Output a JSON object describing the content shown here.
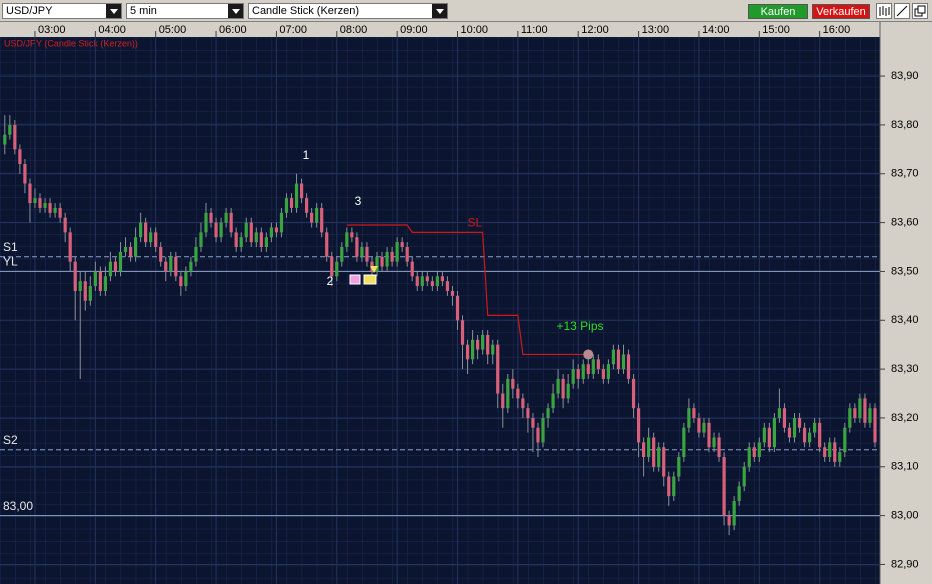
{
  "toolbar": {
    "symbol": "USD/JPY",
    "interval": "5 min",
    "chart_type": "Candle Stick (Kerzen)",
    "buy": "Kaufen",
    "sell": "Verkaufen"
  },
  "chart_data": {
    "type": "candlestick",
    "title": "USD/JPY (Candle Stick (Kerzen))",
    "categories": [
      null,
      null,
      null,
      null,
      null,
      null,
      "03:00",
      null,
      null,
      null,
      null,
      null,
      null,
      null,
      null,
      null,
      null,
      null,
      "04:00",
      null,
      null,
      null,
      null,
      null,
      null,
      null,
      null,
      null,
      null,
      null,
      "05:00",
      null,
      null,
      null,
      null,
      null,
      null,
      null,
      null,
      null,
      null,
      null,
      "06:00",
      null,
      null,
      null,
      null,
      null,
      null,
      null,
      null,
      null,
      null,
      null,
      "07:00",
      null,
      null,
      null,
      null,
      null,
      null,
      null,
      null,
      null,
      null,
      null,
      "08:00",
      null,
      null,
      null,
      null,
      null,
      null,
      null,
      null,
      null,
      null,
      null,
      "09:00",
      null,
      null,
      null,
      null,
      null,
      null,
      null,
      null,
      null,
      null,
      null,
      "10:00",
      null,
      null,
      null,
      null,
      null,
      null,
      null,
      null,
      null,
      null,
      null,
      "11:00",
      null,
      null,
      null,
      null,
      null,
      null,
      null,
      null,
      null,
      null,
      null,
      "12:00",
      null,
      null,
      null,
      null,
      null,
      null,
      null,
      null,
      null,
      null,
      null,
      "13:00",
      null,
      null,
      null,
      null,
      null,
      null,
      null,
      null,
      null,
      null,
      null,
      "14:00",
      null,
      null,
      null,
      null,
      null,
      null,
      null,
      null,
      null,
      null,
      null,
      "15:00",
      null,
      null,
      null,
      null,
      null,
      null,
      null,
      null,
      null,
      null,
      null,
      "16:00",
      null,
      null,
      null,
      null,
      null,
      null,
      null,
      null,
      null,
      null,
      null
    ],
    "open": [
      83.76,
      83.78,
      83.8,
      83.75,
      83.72,
      83.68,
      83.64,
      83.65,
      83.63,
      83.64,
      83.62,
      83.63,
      83.61,
      83.58,
      83.52,
      83.46,
      83.48,
      83.44,
      83.47,
      83.5,
      83.46,
      83.49,
      83.52,
      83.5,
      83.54,
      83.55,
      83.53,
      83.57,
      83.6,
      83.56,
      83.58,
      83.55,
      83.52,
      83.5,
      83.53,
      83.49,
      83.47,
      83.5,
      83.52,
      83.55,
      83.58,
      83.62,
      83.6,
      83.57,
      83.6,
      83.62,
      83.58,
      83.55,
      83.57,
      83.6,
      83.56,
      83.58,
      83.55,
      83.57,
      83.59,
      83.58,
      83.62,
      83.65,
      83.63,
      83.68,
      83.65,
      83.62,
      83.6,
      83.63,
      83.58,
      83.53,
      83.49,
      83.52,
      83.55,
      83.58,
      83.57,
      83.53,
      83.55,
      83.52,
      83.5,
      83.53,
      83.51,
      83.54,
      83.52,
      83.56,
      83.55,
      83.52,
      83.49,
      83.47,
      83.49,
      83.48,
      83.47,
      83.49,
      83.48,
      83.46,
      83.45,
      83.4,
      83.35,
      83.32,
      83.36,
      83.34,
      83.37,
      83.33,
      83.35,
      83.25,
      83.22,
      83.28,
      83.26,
      83.24,
      83.22,
      83.2,
      83.18,
      83.15,
      83.2,
      83.22,
      83.25,
      83.28,
      83.24,
      83.27,
      83.3,
      83.28,
      83.31,
      83.29,
      83.32,
      83.3,
      83.28,
      83.31,
      83.34,
      83.3,
      83.33,
      83.28,
      83.22,
      83.15,
      83.12,
      83.16,
      83.1,
      83.14,
      83.08,
      83.04,
      83.08,
      83.12,
      83.18,
      83.22,
      83.2,
      83.17,
      83.19,
      83.14,
      83.16,
      83.12,
      83.0,
      82.98,
      83.03,
      83.06,
      83.1,
      83.14,
      83.12,
      83.15,
      83.18,
      83.14,
      83.2,
      83.22,
      83.18,
      83.16,
      83.2,
      83.18,
      83.15,
      83.17,
      83.19,
      83.14,
      83.12,
      83.15,
      83.11,
      83.13,
      83.18,
      83.22,
      83.2,
      83.24,
      83.19,
      83.22
    ],
    "high": [
      83.82,
      83.82,
      83.81,
      83.76,
      83.73,
      83.69,
      83.67,
      83.66,
      83.65,
      83.65,
      83.64,
      83.64,
      83.62,
      83.59,
      83.53,
      83.5,
      83.5,
      83.49,
      83.52,
      83.51,
      83.51,
      83.54,
      83.53,
      83.56,
      83.57,
      83.56,
      83.59,
      83.62,
      83.61,
      83.59,
      83.59,
      83.56,
      83.53,
      83.54,
      83.54,
      83.5,
      83.51,
      83.53,
      83.57,
      83.6,
      83.64,
      83.63,
      83.61,
      83.61,
      83.63,
      83.63,
      83.59,
      83.58,
      83.61,
      83.61,
      83.59,
      83.59,
      83.58,
      83.6,
      83.6,
      83.63,
      83.66,
      83.66,
      83.7,
      83.69,
      83.66,
      83.63,
      83.64,
      83.64,
      83.59,
      83.54,
      83.53,
      83.56,
      83.59,
      83.59,
      83.58,
      83.56,
      83.56,
      83.53,
      83.54,
      83.54,
      83.55,
      83.55,
      83.57,
      83.57,
      83.56,
      83.53,
      83.5,
      83.5,
      83.5,
      83.49,
      83.5,
      83.5,
      83.49,
      83.47,
      83.46,
      83.41,
      83.36,
      83.38,
      83.37,
      83.38,
      83.38,
      83.36,
      83.36,
      83.27,
      83.29,
      83.3,
      83.27,
      83.25,
      83.23,
      83.21,
      83.19,
      83.21,
      83.23,
      83.27,
      83.3,
      83.29,
      83.29,
      83.32,
      83.31,
      83.32,
      83.32,
      83.33,
      83.33,
      83.31,
      83.32,
      83.35,
      83.35,
      83.35,
      83.34,
      83.29,
      83.23,
      83.16,
      83.18,
      83.17,
      83.15,
      83.15,
      83.09,
      83.09,
      83.13,
      83.19,
      83.24,
      83.23,
      83.21,
      83.2,
      83.2,
      83.17,
      83.17,
      83.13,
      83.01,
      83.04,
      83.07,
      83.11,
      83.15,
      83.15,
      83.16,
      83.19,
      83.19,
      83.21,
      83.26,
      83.23,
      83.19,
      83.21,
      83.21,
      83.19,
      83.18,
      83.2,
      83.2,
      83.15,
      83.16,
      83.16,
      83.14,
      83.19,
      83.23,
      83.23,
      83.25,
      83.25,
      83.23,
      83.23
    ],
    "low": [
      83.74,
      83.77,
      83.74,
      83.7,
      83.66,
      83.6,
      83.63,
      83.62,
      83.62,
      83.61,
      83.61,
      83.6,
      83.56,
      83.5,
      83.4,
      83.28,
      83.42,
      83.43,
      83.46,
      83.45,
      83.45,
      83.48,
      83.49,
      83.49,
      83.53,
      83.52,
      83.52,
      83.56,
      83.55,
      83.55,
      83.54,
      83.51,
      83.48,
      83.49,
      83.48,
      83.45,
      83.46,
      83.49,
      83.51,
      83.54,
      83.57,
      83.59,
      83.56,
      83.56,
      83.59,
      83.57,
      83.54,
      83.54,
      83.56,
      83.55,
      83.55,
      83.54,
      83.54,
      83.56,
      83.57,
      83.57,
      83.61,
      83.62,
      83.62,
      83.64,
      83.61,
      83.59,
      83.59,
      83.57,
      83.52,
      83.47,
      83.48,
      83.51,
      83.54,
      83.56,
      83.52,
      83.52,
      83.51,
      83.49,
      83.49,
      83.5,
      83.5,
      83.51,
      83.51,
      83.54,
      83.51,
      83.48,
      83.46,
      83.46,
      83.47,
      83.46,
      83.46,
      83.47,
      83.45,
      83.43,
      83.38,
      83.3,
      83.29,
      83.31,
      83.32,
      83.33,
      83.31,
      83.31,
      83.22,
      83.18,
      83.21,
      83.24,
      83.22,
      83.2,
      83.17,
      83.13,
      83.12,
      83.14,
      83.18,
      83.21,
      83.24,
      83.22,
      83.23,
      83.26,
      83.26,
      83.27,
      83.28,
      83.28,
      83.29,
      83.27,
      83.27,
      83.3,
      83.29,
      83.29,
      83.27,
      83.2,
      83.12,
      83.08,
      83.11,
      83.09,
      83.09,
      83.06,
      83.02,
      83.03,
      83.07,
      83.11,
      83.17,
      83.19,
      83.16,
      83.16,
      83.13,
      83.13,
      83.11,
      82.98,
      82.96,
      82.97,
      83.02,
      83.05,
      83.09,
      83.11,
      83.11,
      83.14,
      83.13,
      83.13,
      83.19,
      83.17,
      83.15,
      83.15,
      83.17,
      83.14,
      83.14,
      83.16,
      83.13,
      83.11,
      83.11,
      83.1,
      83.1,
      83.12,
      83.17,
      83.19,
      83.19,
      83.18,
      83.18,
      83.14
    ],
    "close": [
      83.78,
      83.8,
      83.75,
      83.72,
      83.68,
      83.64,
      83.65,
      83.63,
      83.64,
      83.62,
      83.63,
      83.61,
      83.58,
      83.52,
      83.46,
      83.48,
      83.44,
      83.47,
      83.5,
      83.46,
      83.49,
      83.52,
      83.5,
      83.54,
      83.55,
      83.53,
      83.57,
      83.6,
      83.56,
      83.58,
      83.55,
      83.52,
      83.5,
      83.53,
      83.49,
      83.47,
      83.5,
      83.52,
      83.55,
      83.58,
      83.62,
      83.6,
      83.57,
      83.6,
      83.62,
      83.58,
      83.55,
      83.57,
      83.6,
      83.56,
      83.58,
      83.55,
      83.57,
      83.59,
      83.58,
      83.62,
      83.65,
      83.63,
      83.68,
      83.65,
      83.62,
      83.6,
      83.63,
      83.58,
      83.53,
      83.49,
      83.52,
      83.55,
      83.58,
      83.57,
      83.53,
      83.55,
      83.52,
      83.5,
      83.53,
      83.51,
      83.54,
      83.52,
      83.56,
      83.55,
      83.52,
      83.49,
      83.47,
      83.49,
      83.48,
      83.47,
      83.49,
      83.48,
      83.46,
      83.45,
      83.4,
      83.35,
      83.32,
      83.36,
      83.34,
      83.37,
      83.33,
      83.35,
      83.25,
      83.22,
      83.28,
      83.26,
      83.24,
      83.22,
      83.2,
      83.18,
      83.15,
      83.2,
      83.22,
      83.25,
      83.28,
      83.24,
      83.27,
      83.3,
      83.28,
      83.31,
      83.29,
      83.32,
      83.3,
      83.28,
      83.31,
      83.34,
      83.3,
      83.33,
      83.28,
      83.22,
      83.15,
      83.12,
      83.16,
      83.1,
      83.14,
      83.08,
      83.04,
      83.08,
      83.12,
      83.18,
      83.22,
      83.2,
      83.17,
      83.19,
      83.14,
      83.16,
      83.12,
      83.0,
      82.98,
      83.03,
      83.06,
      83.1,
      83.14,
      83.12,
      83.15,
      83.18,
      83.14,
      83.2,
      83.22,
      83.18,
      83.16,
      83.2,
      83.18,
      83.15,
      83.17,
      83.19,
      83.14,
      83.12,
      83.15,
      83.11,
      83.13,
      83.18,
      83.22,
      83.2,
      83.24,
      83.19,
      83.22,
      83.15
    ],
    "up_color": "#3aa540",
    "down_color": "#d9607a",
    "wick_color": "#8a8f9a",
    "series": [
      {
        "name": "SL",
        "color": "#d01818",
        "values": [
          null,
          null,
          null,
          null,
          null,
          null,
          null,
          null,
          null,
          null,
          null,
          null,
          null,
          null,
          null,
          null,
          null,
          null,
          null,
          null,
          null,
          null,
          null,
          null,
          null,
          null,
          null,
          null,
          null,
          null,
          null,
          null,
          null,
          null,
          null,
          null,
          null,
          null,
          null,
          null,
          null,
          null,
          null,
          null,
          null,
          null,
          null,
          null,
          null,
          null,
          null,
          null,
          null,
          null,
          null,
          null,
          null,
          null,
          null,
          null,
          null,
          null,
          null,
          null,
          null,
          null,
          null,
          null,
          83.595,
          83.595,
          83.595,
          83.595,
          83.595,
          83.595,
          83.595,
          83.595,
          83.595,
          83.595,
          83.595,
          83.595,
          83.595,
          83.58,
          83.58,
          83.58,
          83.58,
          83.58,
          83.58,
          83.58,
          83.58,
          83.58,
          83.58,
          83.58,
          83.58,
          83.58,
          83.58,
          83.58,
          83.41,
          83.41,
          83.41,
          83.41,
          83.41,
          83.41,
          83.41,
          83.33,
          83.33,
          83.33,
          83.33,
          83.33,
          83.33,
          83.33,
          83.33,
          83.33,
          83.33,
          83.33,
          83.33,
          83.33,
          83.33,
          null,
          null,
          null,
          null,
          null,
          null,
          null,
          null,
          null,
          null,
          null,
          null,
          null,
          null,
          null,
          null,
          null,
          null,
          null,
          null,
          null,
          null,
          null,
          null,
          null,
          null,
          null,
          null,
          null,
          null,
          null,
          null,
          null,
          null,
          null,
          null,
          null,
          null,
          null,
          null,
          null,
          null,
          null,
          null,
          null,
          null,
          null,
          null,
          null,
          null,
          null,
          null,
          null,
          null,
          null,
          null,
          null
        ]
      }
    ],
    "levels": [
      {
        "label": "S1",
        "value": 83.53,
        "dashed": true
      },
      {
        "label": "YL",
        "value": 83.5,
        "dashed": false
      },
      {
        "label": "S2",
        "value": 83.135,
        "dashed": true
      },
      {
        "label": "83,00",
        "value": 83.0,
        "dashed": false
      }
    ],
    "annotations": [
      "1",
      "2",
      "3",
      "+13 Pips"
    ],
    "ylim": [
      82.86,
      83.98
    ],
    "yticks": [
      {
        "value": 82.9,
        "label": "82,90"
      },
      {
        "value": 83.0,
        "label": "83,00"
      },
      {
        "value": 83.1,
        "label": "83,10"
      },
      {
        "value": 83.2,
        "label": "83,20"
      },
      {
        "value": 83.3,
        "label": "83,30"
      },
      {
        "value": 83.4,
        "label": "83,40"
      },
      {
        "value": 83.5,
        "label": "83,50"
      },
      {
        "value": 83.6,
        "label": "83,60"
      },
      {
        "value": 83.7,
        "label": "83,70"
      },
      {
        "value": 83.8,
        "label": "83,80"
      },
      {
        "value": 83.9,
        "label": "83,90"
      }
    ],
    "grid": true
  }
}
